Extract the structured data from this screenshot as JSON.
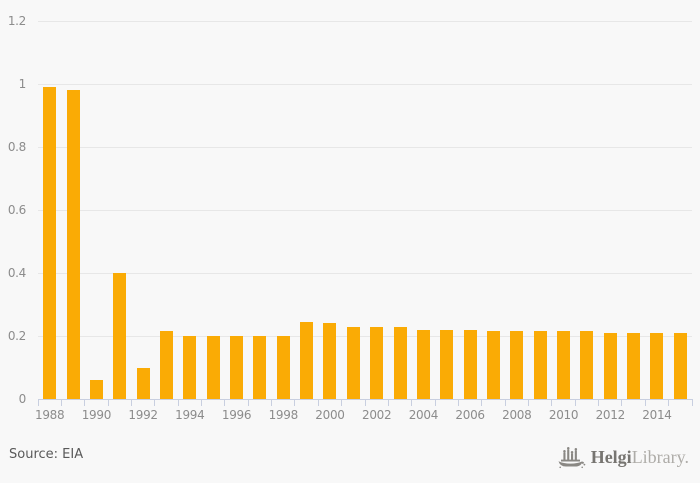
{
  "chart_data": {
    "type": "bar",
    "title": "",
    "xlabel": "",
    "ylabel": "",
    "legend": "none",
    "grid": true,
    "categories": [
      "1988",
      "1989",
      "1990",
      "1991",
      "1992",
      "1993",
      "1994",
      "1995",
      "1996",
      "1997",
      "1998",
      "1999",
      "2000",
      "2001",
      "2002",
      "2003",
      "2004",
      "2005",
      "2006",
      "2007",
      "2008",
      "2009",
      "2010",
      "2011",
      "2012",
      "2013",
      "2014",
      "2015"
    ],
    "values": [
      0.99,
      0.98,
      0.06,
      0.4,
      0.1,
      0.215,
      0.2,
      0.2,
      0.2,
      0.2,
      0.2,
      0.245,
      0.24,
      0.23,
      0.23,
      0.23,
      0.22,
      0.22,
      0.22,
      0.215,
      0.215,
      0.215,
      0.215,
      0.215,
      0.21,
      0.21,
      0.21,
      0.21
    ],
    "ylim": [
      0,
      1.2
    ],
    "yticks": [
      0,
      0.2,
      0.4,
      0.6,
      0.8,
      1,
      1.2
    ],
    "ytick_labels": [
      "0",
      "0.2",
      "0.4",
      "0.6",
      "0.8",
      "1",
      "1.2"
    ],
    "xtick_labels": [
      "1988",
      "1990",
      "1992",
      "1994",
      "1996",
      "1998",
      "2000",
      "2002",
      "2004",
      "2006",
      "2008",
      "2010",
      "2012",
      "2014"
    ]
  },
  "footer": {
    "source": "Source: EIA"
  },
  "branding": {
    "logo_icon": "helgi-ship-icon",
    "name_primary": "Helgi",
    "name_secondary": "Library."
  },
  "colors": {
    "background": "#f8f8f8",
    "bar": "#faab05",
    "gridline": "#e7e7e7",
    "axis": "#c8cfe0",
    "axis_label": "#8c8c8c",
    "source_text": "#595959",
    "logo_primary": "#777571",
    "logo_secondary": "#aeaca8"
  }
}
